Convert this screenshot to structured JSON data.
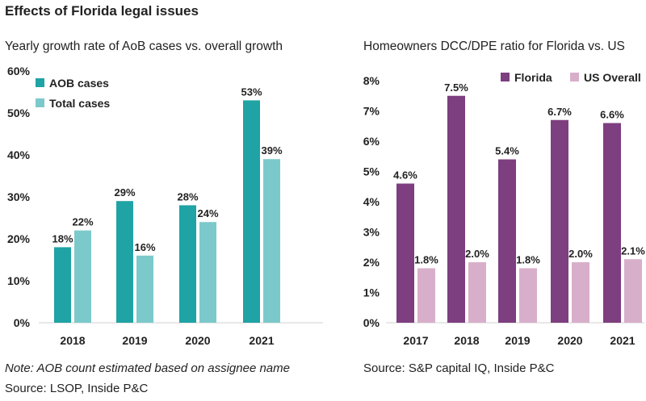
{
  "title": "Effects of Florida legal issues",
  "notes": {
    "left_note": "Note: AOB count estimated based on assignee name",
    "left_source": "Source: LSOP, Inside P&C",
    "right_source": "Source: S&P capital IQ, Inside P&C"
  },
  "chart_data": [
    {
      "type": "bar",
      "title": "Yearly growth rate of AoB cases vs. overall growth",
      "categories": [
        "2018",
        "2019",
        "2020",
        "2021"
      ],
      "series": [
        {
          "name": "AOB cases",
          "values": [
            18,
            29,
            28,
            53
          ],
          "labels": [
            "18%",
            "29%",
            "28%",
            "53%"
          ],
          "color": "#1fa3a5"
        },
        {
          "name": "Total cases",
          "values": [
            22,
            16,
            24,
            39
          ],
          "labels": [
            "22%",
            "16%",
            "24%",
            "39%"
          ],
          "color": "#7cc9cb"
        }
      ],
      "ylim": [
        0,
        60
      ],
      "yticks": [
        "0%",
        "10%",
        "20%",
        "30%",
        "40%",
        "50%",
        "60%"
      ],
      "legend": "top-left",
      "grid": false
    },
    {
      "type": "bar",
      "title": "Homeowners DCC/DPE ratio for Florida vs. US",
      "categories": [
        "2017",
        "2018",
        "2019",
        "2020",
        "2021"
      ],
      "series": [
        {
          "name": "Florida",
          "values": [
            4.6,
            7.5,
            5.4,
            6.7,
            6.6
          ],
          "labels": [
            "4.6%",
            "7.5%",
            "5.4%",
            "6.7%",
            "6.6%"
          ],
          "color": "#7d3f7f"
        },
        {
          "name": "US Overall",
          "values": [
            1.8,
            2.0,
            1.8,
            2.0,
            2.1
          ],
          "labels": [
            "1.8%",
            "2.0%",
            "1.8%",
            "2.0%",
            "2.1%"
          ],
          "color": "#d8afca"
        }
      ],
      "ylim": [
        0,
        8
      ],
      "yticks": [
        "0%",
        "1%",
        "2%",
        "3%",
        "4%",
        "5%",
        "6%",
        "7%",
        "8%"
      ],
      "legend": "top-right",
      "grid": false
    }
  ]
}
